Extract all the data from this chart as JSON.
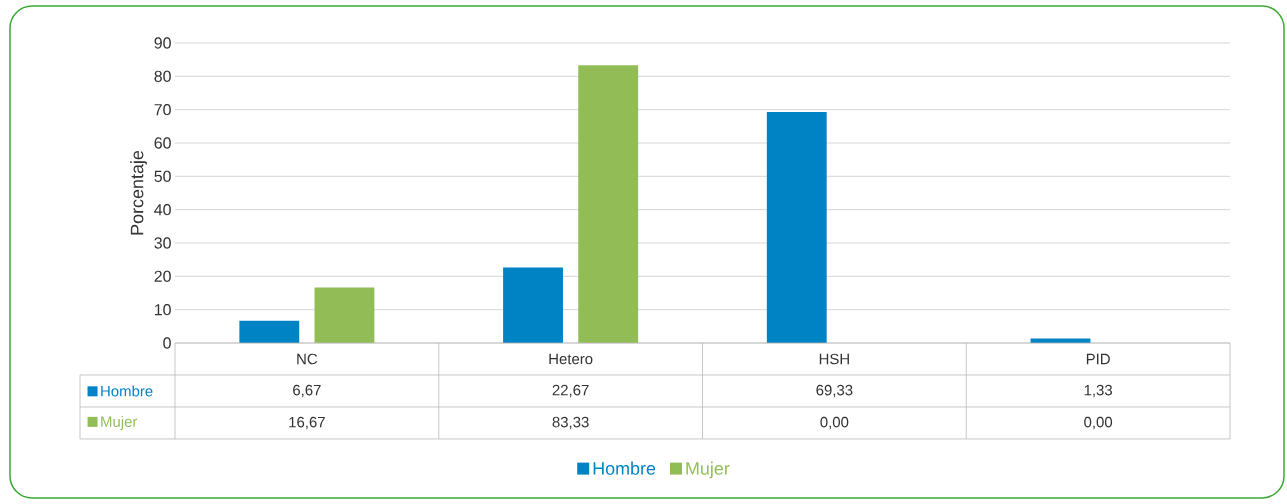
{
  "chart_data": {
    "type": "bar",
    "ylabel": "Porcentaje",
    "categories": [
      "NC",
      "Hetero",
      "HSH",
      "PID"
    ],
    "series": [
      {
        "name": "Hombre",
        "color": "#0083c4",
        "values": [
          6.67,
          22.67,
          69.33,
          1.33
        ],
        "value_labels": [
          "6,67",
          "22,67",
          "69,33",
          "1,33"
        ]
      },
      {
        "name": "Mujer",
        "color": "#92bd56",
        "values": [
          16.67,
          83.33,
          0.0,
          0.0
        ],
        "value_labels": [
          "16,67",
          "83,33",
          "0,00",
          "0,00"
        ]
      }
    ],
    "ylim": [
      0,
      90
    ],
    "yticks": [
      0,
      10,
      20,
      30,
      40,
      50,
      60,
      70,
      80,
      90
    ],
    "grid": "y",
    "legend": "bottom"
  }
}
